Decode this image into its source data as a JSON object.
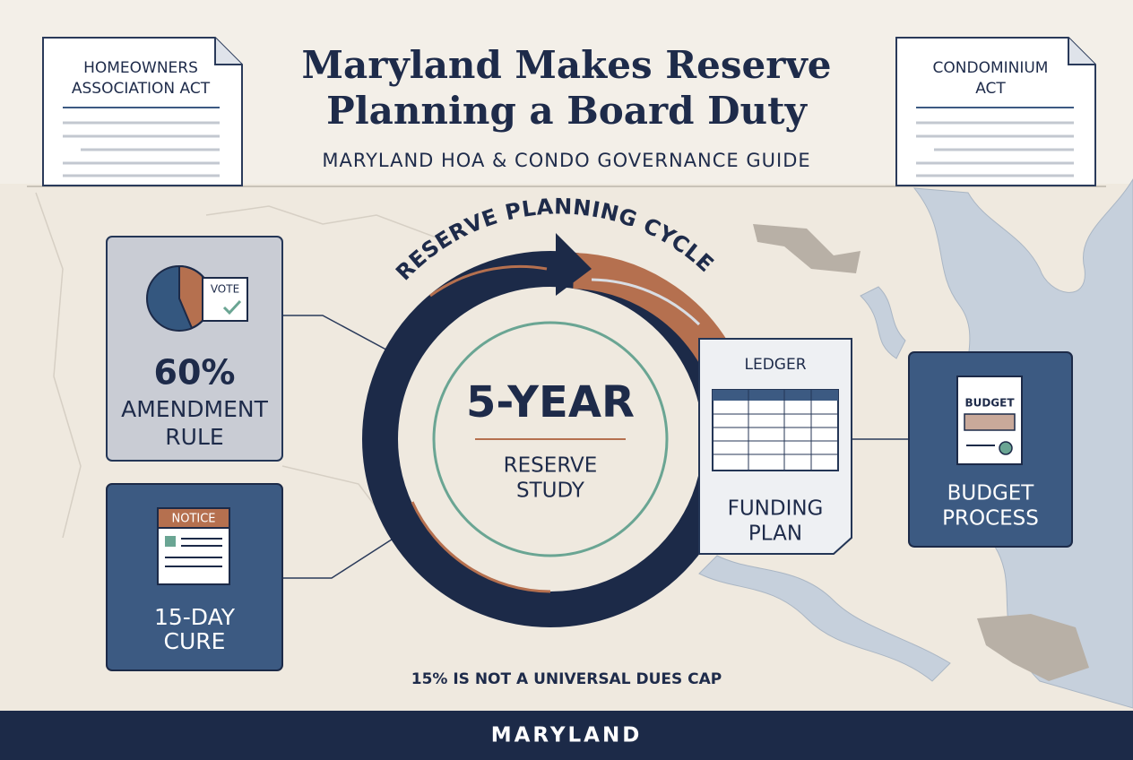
{
  "documents": [
    {
      "lines": [
        "HOMEOWNERS",
        "ASSOCIATION ACT"
      ]
    },
    {
      "lines": [
        "CONDOMINIUM",
        "ACT"
      ]
    }
  ],
  "header": {
    "title_lines": [
      "Maryland Makes Reserve",
      "Planning a Board Duty"
    ],
    "subtitle": "MARYLAND HOA & CONDO GOVERNANCE GUIDE"
  },
  "cycle": {
    "label": "RESERVE PLANNING CYCLE",
    "headline": "5-YEAR",
    "caption_lines": [
      "RESERVE",
      "STUDY"
    ]
  },
  "panels": [
    {
      "icon_label": "VOTE",
      "headline": "60%",
      "caption_lines": [
        "AMENDMENT",
        "RULE"
      ]
    },
    {
      "icon_label": "NOTICE",
      "caption_lines": [
        "15-DAY",
        "CURE"
      ]
    }
  ],
  "ledger": {
    "icon_label": "LEDGER",
    "caption_lines": [
      "FUNDING",
      "PLAN"
    ]
  },
  "budget": {
    "icon_label": "BUDGET",
    "caption_lines": [
      "BUDGET",
      "PROCESS"
    ]
  },
  "footnote": "15% IS NOT A UNIVERSAL DUES CAP",
  "footer": "MARYLAND"
}
